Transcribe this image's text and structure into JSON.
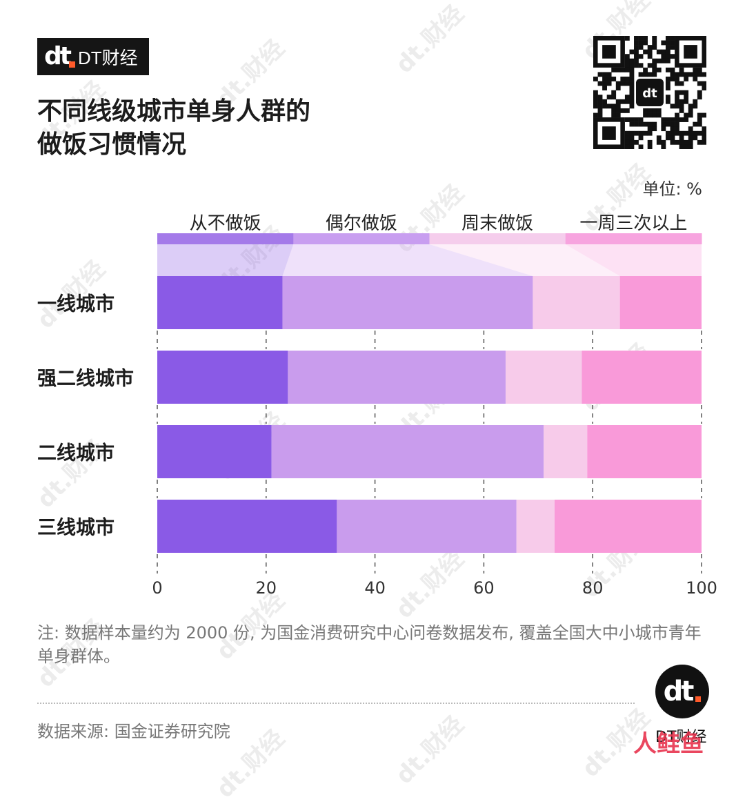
{
  "brand": {
    "logo": "dt",
    "name": "DT财经"
  },
  "title": {
    "line1": "不同线级城市单身人群的",
    "line2": "做饭习惯情况"
  },
  "unit_label": "单位: %",
  "note": "注: 数据样本量约为 2000 份, 为国金消费研究中心问卷数据发布, 覆盖全国大中小城市青年单身群体。",
  "source": "数据来源: 国金证券研究院",
  "badge": {
    "logo": "dt",
    "name": "DT财经"
  },
  "corner_mark": "人鲑鱼",
  "watermark_text": "dt.财经",
  "colors": {
    "series": [
      "#8a5ae6",
      "#c99ced",
      "#f7cbea",
      "#f99ad9"
    ],
    "header": [
      "#a47ae9",
      "#c89ef0",
      "#f5cdec",
      "#f7a4df"
    ]
  },
  "chart_data": {
    "type": "bar",
    "orientation": "horizontal",
    "stacked": true,
    "categories": [
      "一线城市",
      "强二线城市",
      "二线城市",
      "三线城市"
    ],
    "series": [
      {
        "name": "从不做饭",
        "values": [
          23,
          24,
          21,
          33
        ]
      },
      {
        "name": "偶尔做饭",
        "values": [
          46,
          40,
          50,
          33
        ]
      },
      {
        "name": "周末做饭",
        "values": [
          16,
          14,
          8,
          7
        ]
      },
      {
        "name": "一周三次以上",
        "values": [
          15,
          22,
          21,
          27
        ]
      }
    ],
    "xlim": [
      0,
      100
    ],
    "xticks": [
      "0",
      "20",
      "40",
      "60",
      "80",
      "100"
    ],
    "legend_position": "top",
    "grid": "dashed vertical lines between bars"
  }
}
